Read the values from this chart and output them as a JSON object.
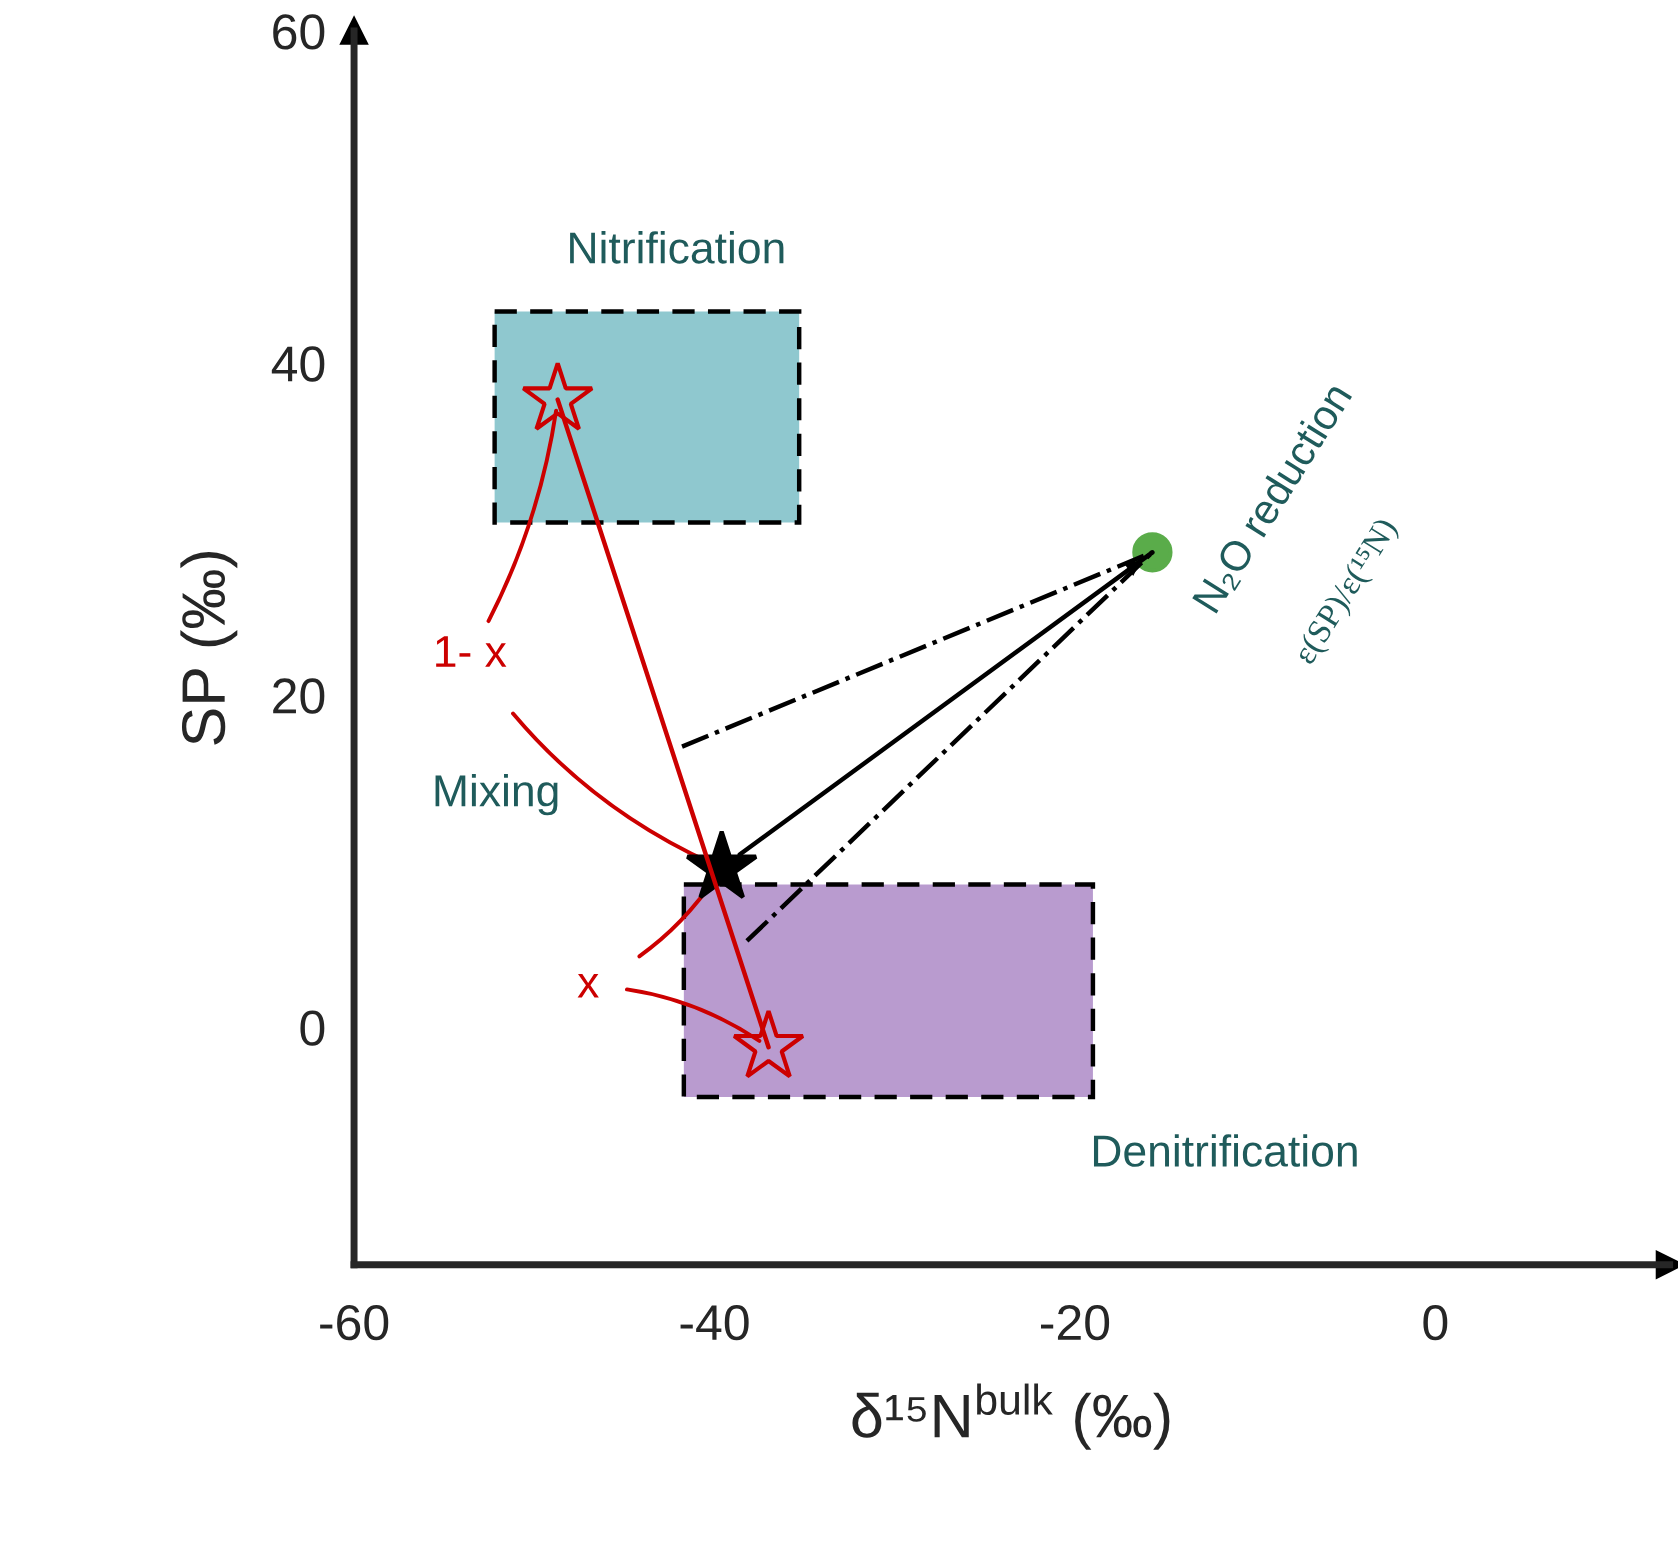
{
  "chart_data": {
    "type": "scatter",
    "xlabel": "δ¹⁵N$^{bulk}$ (‰)",
    "ylabel": "SP (‰)",
    "xlim": [
      -60,
      13
    ],
    "ylim": [
      -14.3,
      60
    ],
    "xticks": [
      -60,
      -40,
      -20,
      0
    ],
    "yticks": [
      0,
      20,
      40,
      60
    ],
    "grid": false,
    "legend": false,
    "series": [
      {
        "type": "area",
        "color": "#8fc8cf",
        "x": [
          -52.2,
          -35.3,
          -35.3,
          -52.2
        ],
        "values": [
          43.1,
          43.1,
          30.4,
          30.4
        ]
      },
      {
        "type": "area",
        "color": "#b99bcf",
        "x": [
          -41.7,
          -19,
          -19,
          -41.7
        ],
        "values": [
          8.6,
          8.6,
          -4.2,
          -4.2
        ]
      },
      {
        "type": "line",
        "color": "#cc0000",
        "line_style": "solid",
        "marker": "none",
        "x": [
          -48.7,
          -37
        ],
        "values": [
          37.8,
          -1.2
        ]
      },
      {
        "type": "line",
        "color": "#000000",
        "line_style": "solid",
        "marker": "none",
        "x": [
          -38.6,
          -15.7
        ],
        "values": [
          10.4,
          28.6
        ]
      },
      {
        "type": "line",
        "color": "#000000",
        "line_style": "dashdot",
        "marker": "none",
        "x": [
          -41.8,
          -15.7
        ],
        "values": [
          16.9,
          28.6
        ]
      },
      {
        "type": "line",
        "color": "#000000",
        "line_style": "dashdot",
        "marker": "none",
        "x": [
          -38.2,
          -15.7
        ],
        "values": [
          5.2,
          28.6
        ]
      },
      {
        "color": "#cc0000",
        "marker": "star",
        "x": [
          -48.7
        ],
        "values": [
          37.8
        ]
      },
      {
        "color": "#cc0000",
        "marker": "star",
        "x": [
          -37
        ],
        "values": [
          -1.2
        ]
      },
      {
        "color": "#000000",
        "marker": "star",
        "x": [
          -39.6
        ],
        "values": [
          9.6
        ]
      },
      {
        "color": "#5aac4a",
        "marker": "circle",
        "x": [
          -15.7
        ],
        "values": [
          28.6
        ]
      }
    ],
    "annotations": [
      "Nitrification",
      "Denitrification",
      "Mixing",
      "N₂O reduction",
      "ε(SP)/ε(¹⁵N)",
      {
        "text": "1- x",
        "x": -39.6,
        "y": 9.6
      },
      {
        "text": "x",
        "x": -39.6,
        "y": 9.6
      }
    ]
  }
}
